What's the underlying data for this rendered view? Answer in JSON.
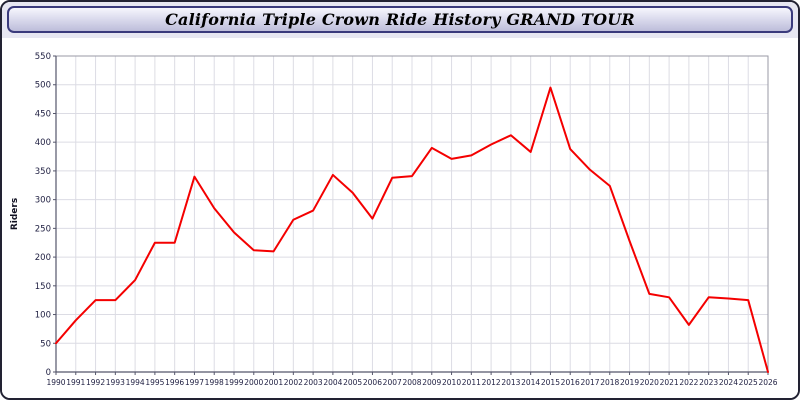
{
  "chart_data": {
    "type": "line",
    "title": "California Triple Crown Ride History GRAND TOUR",
    "xlabel": "",
    "ylabel": "Riders",
    "ylim": [
      0,
      550
    ],
    "ytick_step": 50,
    "grid": true,
    "line_color": "#f40000",
    "grid_color": "#dcdce4",
    "axis_color": "#999aa6",
    "x": [
      "1990",
      "1991",
      "1992",
      "1993",
      "1994",
      "1995",
      "1996",
      "1997",
      "1998",
      "1999",
      "2000",
      "2001",
      "2002",
      "2003",
      "2004",
      "2005",
      "2006",
      "2007",
      "2008",
      "2009",
      "2010",
      "2011",
      "2012",
      "2013",
      "2014",
      "2015",
      "2016",
      "2017",
      "2018",
      "2019",
      "2020",
      "2021",
      "2022",
      "2023",
      "2024",
      "2025",
      "2026"
    ],
    "series": [
      {
        "name": "Riders",
        "values": [
          50,
          90,
          125,
          125,
          160,
          225,
          225,
          340,
          285,
          243,
          212,
          210,
          265,
          281,
          343,
          312,
          267,
          338,
          341,
          390,
          371,
          377,
          396,
          412,
          383,
          495,
          388,
          352,
          324,
          228,
          136,
          130,
          82,
          130,
          128,
          125,
          0
        ]
      }
    ]
  }
}
